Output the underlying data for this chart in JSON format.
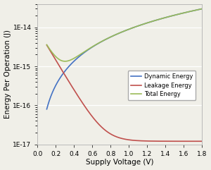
{
  "title": "",
  "xlabel": "Supply Voltage (V)",
  "ylabel": "Energy Per Operation (J)",
  "xlim": [
    0,
    1.8
  ],
  "ymin": 1e-17,
  "ymax": 4e-14,
  "dynamic_color": "#4472C4",
  "leakage_color": "#C0504D",
  "total_color": "#9BBB59",
  "legend_labels": [
    "Dynamic Energy",
    "Leakage Energy",
    "Total Energy"
  ],
  "bg_color": "#F0EFE8",
  "grid_color": "#FFFFFF",
  "spine_color": "#B0B0B0",
  "tick_label_fontsize": 6.5,
  "axis_label_fontsize": 7.5
}
